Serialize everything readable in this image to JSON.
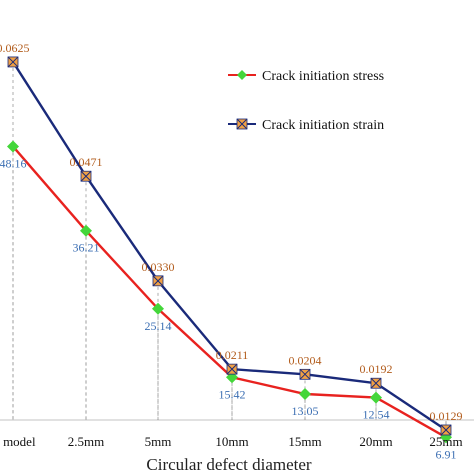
{
  "chart_data": {
    "type": "line",
    "categories": [
      "ct model",
      "2.5mm",
      "5mm",
      "10mm",
      "15mm",
      "20mm",
      "25mm"
    ],
    "xlabel": "Circular defect diameter",
    "series": [
      {
        "name": "Crack initiation stress",
        "values": [
          48.16,
          36.21,
          25.14,
          15.42,
          13.05,
          12.54,
          6.91
        ],
        "labels": [
          "48.16",
          "36.21",
          "25.14",
          "15.42",
          "13.05",
          "12.54",
          "6.91"
        ],
        "color": "#e8221f",
        "marker_color": "#44d63a",
        "label_color": "#3c6fb3",
        "marker": "diamond"
      },
      {
        "name": "Crack initiation strain",
        "values": [
          0.0625,
          0.0471,
          0.033,
          0.0211,
          0.0204,
          0.0192,
          0.0129
        ],
        "labels": [
          "0.0625",
          "0.0471",
          "0.0330",
          "0.0211",
          "0.0204",
          "0.0192",
          "0.0129"
        ],
        "color": "#1a2a7a",
        "marker_color": "#f0a044",
        "label_color": "#b25c1c",
        "marker": "square-x"
      }
    ],
    "legend_position": "top-right",
    "grid": false
  }
}
